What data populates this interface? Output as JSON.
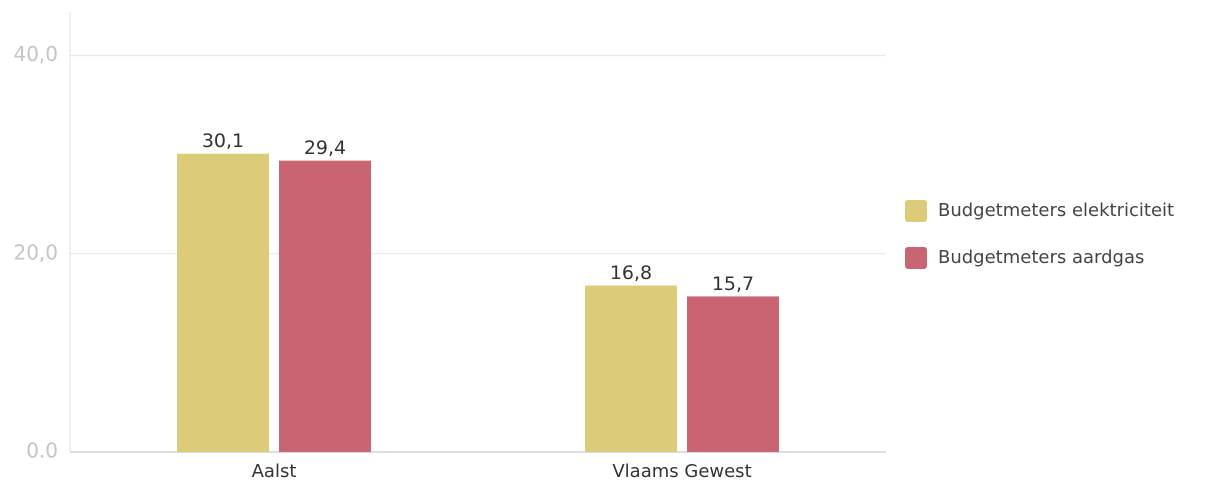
{
  "chart_data": {
    "type": "bar",
    "categories": [
      "Aalst",
      "Vlaams Gewest"
    ],
    "series": [
      {
        "name": "Budgetmeters elektriciteit",
        "color": "#dccb78",
        "values": [
          30.1,
          16.8
        ],
        "value_labels": [
          "30,1",
          "16,8"
        ]
      },
      {
        "name": "Budgetmeters aardgas",
        "color": "#c96472",
        "values": [
          29.4,
          15.7
        ],
        "value_labels": [
          "29,4",
          "15,7"
        ]
      }
    ],
    "ylim": [
      0,
      44.4
    ],
    "yticks": [
      {
        "value": 0,
        "label": "0.0"
      },
      {
        "value": 20,
        "label": "20,0"
      },
      {
        "value": 40,
        "label": "40,0"
      }
    ],
    "grid": true,
    "legend": "right"
  }
}
